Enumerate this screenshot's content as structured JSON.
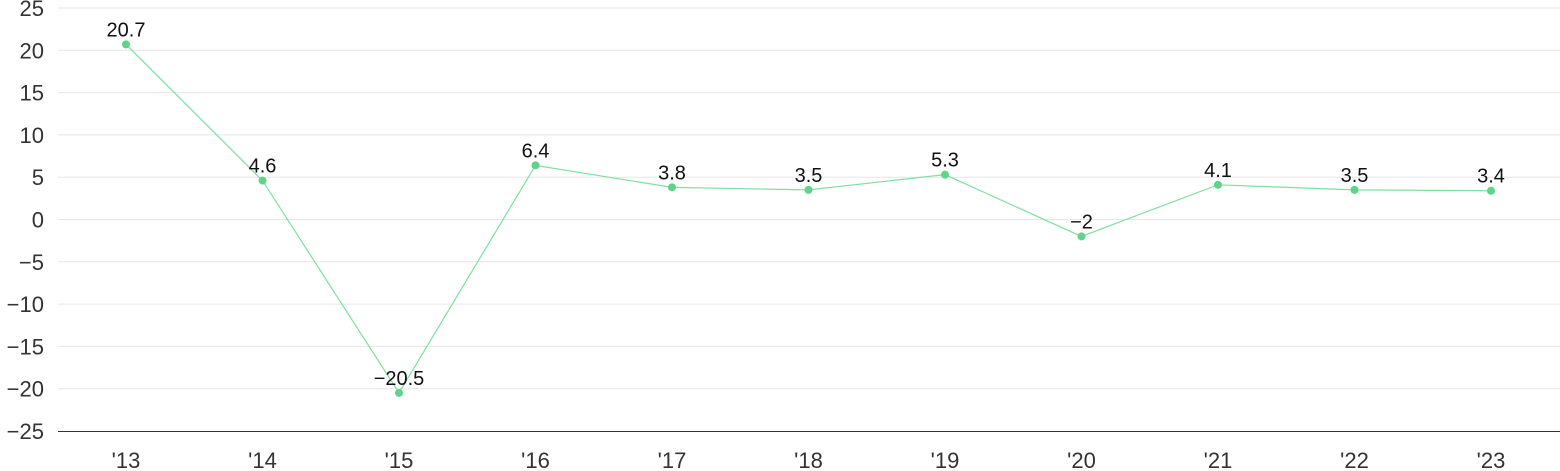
{
  "chart_data": {
    "type": "line",
    "title": "",
    "xlabel": "",
    "ylabel": "",
    "categories": [
      "'13",
      "'14",
      "'15",
      "'16",
      "'17",
      "'18",
      "'19",
      "'20",
      "'21",
      "'22",
      "'23"
    ],
    "series": [
      {
        "values": [
          20.7,
          4.6,
          -20.5,
          6.4,
          3.8,
          3.5,
          5.3,
          -2,
          4.1,
          3.5,
          3.4
        ]
      }
    ],
    "data_labels": [
      "20.7",
      "4.6",
      "−20.5",
      "6.4",
      "3.8",
      "3.5",
      "5.3",
      "−2",
      "4.1",
      "3.5",
      "3.4"
    ],
    "ylim": [
      -25,
      25
    ],
    "yticks": [
      25,
      20,
      15,
      10,
      5,
      0,
      -5,
      -10,
      -15,
      -20,
      -25
    ],
    "ytick_labels": [
      "25",
      "20",
      "15",
      "10",
      "5",
      "0",
      "−5",
      "−10",
      "−15",
      "−20",
      "−25"
    ],
    "grid": true,
    "legend": "none",
    "colors": {
      "line": "#7ee0a0",
      "marker": "#5fd38a",
      "grid": "#e6e6e6",
      "axis": "#333333"
    }
  }
}
